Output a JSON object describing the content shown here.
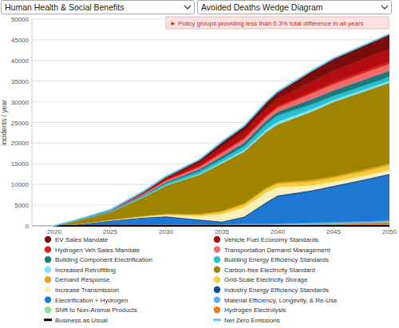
{
  "header": {
    "selects": [
      "Human Health & Social Benefits",
      "Avoided Deaths Wedge Diagram"
    ],
    "notice": "► Policy groups providing less than 0.3% total difference in all years"
  },
  "chart_data": {
    "type": "area",
    "stacked": true,
    "grid": true,
    "legend": "bottom",
    "y_label": "incidents / year",
    "x": [
      2020,
      2022,
      2025,
      2028,
      2030,
      2033,
      2035,
      2037,
      2039,
      2040,
      2043,
      2045,
      2048,
      2050
    ],
    "xlim": [
      2018,
      2050
    ],
    "xticks": [
      2020,
      2025,
      2030,
      2035,
      2040,
      2045,
      2050
    ],
    "ylim": [
      0,
      50000
    ],
    "yticks": [
      0,
      5000,
      10000,
      15000,
      20000,
      25000,
      30000,
      35000,
      40000,
      45000,
      50000
    ],
    "series": [
      {
        "name": "EV Sales Mandate",
        "color": "#7a0c0c",
        "values": [
          0,
          20,
          50,
          200,
          400,
          700,
          1200,
          1400,
          1600,
          1700,
          2600,
          3000,
          3300,
          3600
        ]
      },
      {
        "name": "Vehicle Fuel Economy Standards",
        "color": "#b40d0d",
        "values": [
          0,
          30,
          100,
          300,
          500,
          900,
          1300,
          1500,
          1700,
          1800,
          2500,
          2800,
          3000,
          3100
        ]
      },
      {
        "name": "Hydrogen Veh Sales Mandate",
        "color": "#e01b1b",
        "values": [
          0,
          0,
          0,
          50,
          80,
          120,
          180,
          250,
          300,
          350,
          400,
          450,
          500,
          500
        ]
      },
      {
        "name": "Transportation Demand Management",
        "color": "#f26b6b",
        "values": [
          0,
          50,
          150,
          300,
          400,
          600,
          800,
          900,
          950,
          1000,
          1400,
          1500,
          1600,
          1700
        ]
      },
      {
        "name": "Building Component Electrification",
        "color": "#1a7a80",
        "values": [
          0,
          20,
          80,
          200,
          300,
          500,
          700,
          800,
          850,
          900,
          1200,
          1300,
          1400,
          1400
        ]
      },
      {
        "name": "Building Energy Efficiency Standards",
        "color": "#26c0d0",
        "values": [
          0,
          50,
          150,
          300,
          400,
          600,
          700,
          900,
          1300,
          1500,
          1200,
          1000,
          1000,
          1000
        ]
      },
      {
        "name": "Increased Retrofitting",
        "color": "#7fe3f0",
        "values": [
          0,
          20,
          50,
          100,
          150,
          250,
          350,
          450,
          600,
          700,
          600,
          500,
          500,
          500
        ]
      },
      {
        "name": "Carbon-free Electricity Standard",
        "color": "#a08400",
        "values": [
          0,
          800,
          1800,
          4500,
          6800,
          9500,
          11500,
          12500,
          13500,
          14000,
          16500,
          18000,
          19000,
          19500
        ]
      },
      {
        "name": "Demand Response",
        "color": "#e8a317",
        "values": [
          0,
          20,
          50,
          100,
          150,
          200,
          250,
          300,
          300,
          350,
          400,
          400,
          450,
          500
        ]
      },
      {
        "name": "Grid-Scale Electricity Storage",
        "color": "#f7cd3c",
        "values": [
          0,
          0,
          50,
          100,
          150,
          300,
          500,
          700,
          800,
          800,
          900,
          900,
          1000,
          1100
        ]
      },
      {
        "name": "Increase Transmission",
        "color": "#faf0b8",
        "values": [
          0,
          0,
          100,
          200,
          300,
          800,
          1800,
          2200,
          2400,
          2000,
          1200,
          1000,
          900,
          900
        ]
      },
      {
        "name": "Industry Energy Efficiency Standards",
        "color": "#0b4aa2",
        "values": [
          0,
          50,
          150,
          250,
          300,
          300,
          300,
          300,
          300,
          300,
          300,
          300,
          300,
          300
        ]
      },
      {
        "name": "Electrification + Hydrogen",
        "color": "#1f78d1",
        "values": [
          0,
          300,
          1000,
          1600,
          1800,
          1000,
          500,
          1500,
          5000,
          6500,
          7500,
          8500,
          10000,
          11000
        ]
      },
      {
        "name": "Material Efficiency, Longevity, & Re-Use",
        "color": "#5fb0f2",
        "values": [
          0,
          50,
          100,
          150,
          200,
          200,
          200,
          400,
          300,
          300,
          300,
          300,
          300,
          300
        ]
      },
      {
        "name": "Shift to Non-Animal Products",
        "color": "#86e39a",
        "values": [
          0,
          10,
          20,
          30,
          40,
          50,
          60,
          60,
          70,
          70,
          80,
          80,
          90,
          100
        ]
      },
      {
        "name": "Hydrogen Electrolysis",
        "color": "#f07a1a",
        "values": [
          0,
          0,
          0,
          0,
          0,
          0,
          0,
          0,
          100,
          200,
          400,
          500,
          700,
          900
        ]
      },
      {
        "name": "Business as Usual",
        "color": "#000000",
        "type": "line",
        "values": [
          0,
          0,
          0,
          0,
          0,
          0,
          0,
          0,
          0,
          0,
          0,
          0,
          0,
          0
        ]
      },
      {
        "name": "Net Zero Emissions",
        "color": "#5ccbf2",
        "type": "line",
        "values": [
          0,
          1420,
          3850,
          8380,
          11970,
          16020,
          20340,
          24160,
          30070,
          32470,
          37480,
          40530,
          44040,
          46400
        ]
      }
    ]
  }
}
